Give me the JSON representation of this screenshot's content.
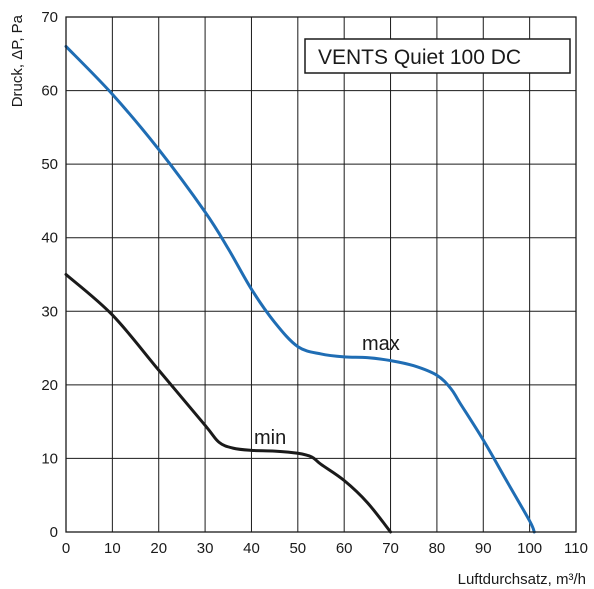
{
  "chart_data": {
    "type": "line",
    "title": "VENTS Quiet 100 DC",
    "xlabel": "Luftdurchsatz, m³/h",
    "ylabel": "Druck, ΔP, Pa",
    "xlim": [
      0,
      110
    ],
    "ylim": [
      0,
      70
    ],
    "xticks": [
      "0",
      "10",
      "20",
      "30",
      "40",
      "50",
      "60",
      "70",
      "80",
      "90",
      "100",
      "110"
    ],
    "yticks": [
      "0",
      "10",
      "20",
      "30",
      "40",
      "50",
      "60",
      "70"
    ],
    "grid": true,
    "series": [
      {
        "name": "max",
        "color": "#1f6db4",
        "x": [
          0,
          10,
          20,
          30,
          35,
          40,
          45,
          50,
          55,
          60,
          65,
          70,
          75,
          80,
          83,
          85,
          90,
          95,
          100,
          101
        ],
        "y": [
          66,
          59.5,
          52,
          43.5,
          38.5,
          33,
          28.5,
          25.2,
          24.2,
          23.8,
          23.7,
          23.3,
          22.6,
          21.3,
          19.5,
          17.5,
          12.5,
          7,
          1.5,
          0
        ]
      },
      {
        "name": "min",
        "color": "#1a1a1a",
        "x": [
          0,
          10,
          20,
          30,
          33,
          36,
          40,
          45,
          50,
          53,
          55,
          60,
          65,
          70
        ],
        "y": [
          35,
          29.5,
          22,
          14.5,
          12.2,
          11.4,
          11.1,
          11,
          10.7,
          10.2,
          9.2,
          7,
          4,
          0
        ]
      }
    ]
  }
}
